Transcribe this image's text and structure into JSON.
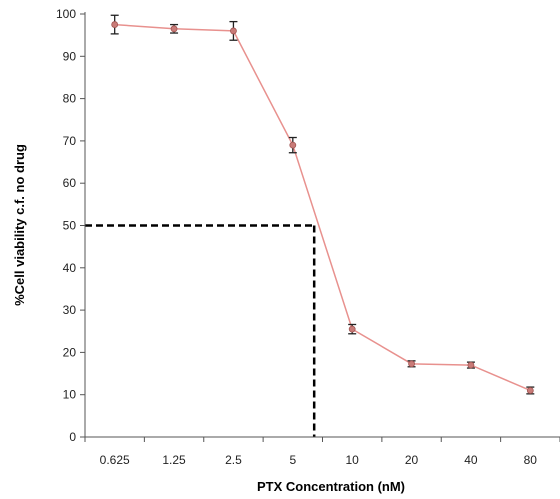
{
  "chart_data": {
    "type": "line",
    "title": "",
    "xlabel": "PTX Concentration (nM)",
    "ylabel": "%Cell viability c.f. no drug",
    "categories": [
      "0.625",
      "1.25",
      "2.5",
      "5",
      "10",
      "20",
      "40",
      "80"
    ],
    "ylim": [
      0,
      100
    ],
    "yticks": [
      0,
      10,
      20,
      30,
      40,
      50,
      60,
      70,
      80,
      90,
      100
    ],
    "grid": false,
    "legend": "none",
    "series": [
      {
        "values": [
          97.5,
          96.5,
          96,
          69,
          25.5,
          17.3,
          17,
          11
        ],
        "errors": [
          2.2,
          1,
          2.2,
          1.8,
          1.1,
          0.7,
          0.7,
          0.8
        ],
        "color": "#e8918e",
        "marker_color": "#c97b78"
      }
    ],
    "annotations": [
      {
        "type": "dashed-guide",
        "y": 50,
        "x_between": [
          "5",
          "10"
        ],
        "x_fraction": 0.36,
        "color": "#000000"
      }
    ]
  }
}
